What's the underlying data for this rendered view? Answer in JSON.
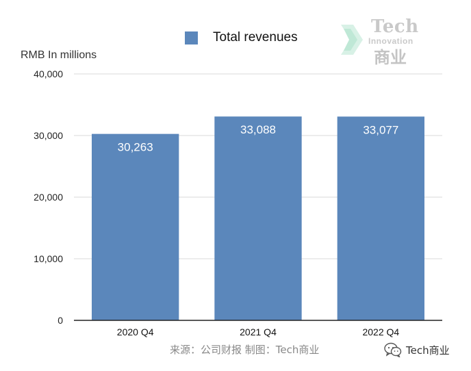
{
  "chart_data": {
    "type": "bar",
    "categories": [
      "2020 Q4",
      "2021 Q4",
      "2022 Q4"
    ],
    "series": [
      {
        "name": "Total revenues",
        "values": [
          30263,
          33088,
          33077
        ],
        "color": "#5b87bb"
      }
    ],
    "data_labels": [
      "30,263",
      "33,088",
      "33,077"
    ],
    "ylabel": "RMB In millions",
    "ylim": [
      0,
      40000
    ],
    "yticks": [
      0,
      10000,
      20000,
      30000,
      40000
    ],
    "ytick_labels": [
      "0",
      "10,000",
      "20,000",
      "30,000",
      "40,000"
    ],
    "grid": true,
    "legend_position": "top-center"
  },
  "watermark": {
    "title": "Tech",
    "subtitle": "Innovation",
    "cn": "商业",
    "icon": "chevron-logo-icon"
  },
  "footer": {
    "source": "来源：公司财报 制图：Tech商业",
    "account_name": "Tech商业",
    "account_icon": "wechat-icon"
  }
}
